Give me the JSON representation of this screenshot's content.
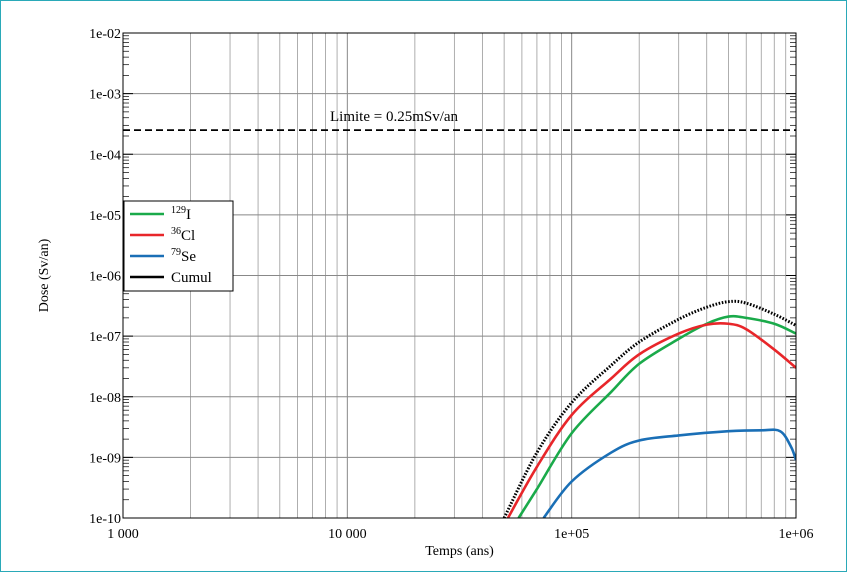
{
  "chart_data": {
    "type": "line",
    "title": "",
    "xlabel": "Temps (ans)",
    "ylabel": "Dose (Sv/an)",
    "x_scale": "log",
    "y_scale": "log",
    "xlim": [
      1000,
      1000000
    ],
    "ylim": [
      1e-10,
      0.01
    ],
    "x_ticks": [
      {
        "value": 1000,
        "label": "1 000"
      },
      {
        "value": 10000,
        "label": "10 000"
      },
      {
        "value": 100000,
        "label": "1e+05"
      },
      {
        "value": 1000000,
        "label": "1e+06"
      }
    ],
    "y_ticks": [
      {
        "value": 1e-10,
        "label": "1e-10"
      },
      {
        "value": 1e-09,
        "label": "1e-09"
      },
      {
        "value": 1e-08,
        "label": "1e-08"
      },
      {
        "value": 1e-07,
        "label": "1e-07"
      },
      {
        "value": 1e-06,
        "label": "1e-06"
      },
      {
        "value": 1e-05,
        "label": "1e-05"
      },
      {
        "value": 0.0001,
        "label": "1e-04"
      },
      {
        "value": 0.001,
        "label": "1e-03"
      },
      {
        "value": 0.01,
        "label": "1e-02"
      }
    ],
    "grid": true,
    "legend_position": "left",
    "limit_line": {
      "value": 0.00025,
      "label": "Limite = 0.25mSv/an",
      "color": "#000000"
    },
    "series": [
      {
        "name": "I",
        "mass": "129",
        "color": "#1aaa4a",
        "points": [
          [
            58000,
            1e-10
          ],
          [
            70000,
            3e-10
          ],
          [
            100000,
            2.5e-09
          ],
          [
            150000,
            1.2e-08
          ],
          [
            200000,
            3.5e-08
          ],
          [
            300000,
            9e-08
          ],
          [
            400000,
            1.6e-07
          ],
          [
            500000,
            2.1e-07
          ],
          [
            600000,
            2e-07
          ],
          [
            800000,
            1.6e-07
          ],
          [
            1000000,
            1.1e-07
          ]
        ]
      },
      {
        "name": "Cl",
        "mass": "36",
        "color": "#e8262a",
        "points": [
          [
            52000,
            1e-10
          ],
          [
            70000,
            7e-10
          ],
          [
            100000,
            5e-09
          ],
          [
            150000,
            2e-08
          ],
          [
            200000,
            5e-08
          ],
          [
            300000,
            1.1e-07
          ],
          [
            400000,
            1.55e-07
          ],
          [
            500000,
            1.6e-07
          ],
          [
            600000,
            1.3e-07
          ],
          [
            800000,
            6e-08
          ],
          [
            1000000,
            3e-08
          ]
        ]
      },
      {
        "name": "Se",
        "mass": "79",
        "color": "#1a6fb6",
        "points": [
          [
            75000,
            1e-10
          ],
          [
            100000,
            4e-10
          ],
          [
            150000,
            1.2e-09
          ],
          [
            200000,
            1.9e-09
          ],
          [
            300000,
            2.3e-09
          ],
          [
            500000,
            2.7e-09
          ],
          [
            700000,
            2.8e-09
          ],
          [
            850000,
            2.7e-09
          ],
          [
            950000,
            1.5e-09
          ],
          [
            1000000,
            9e-10
          ]
        ]
      },
      {
        "name": "Cumul",
        "mass": "",
        "color": "#000000",
        "dash": "dotted",
        "points": [
          [
            50000,
            1e-10
          ],
          [
            70000,
            1.2e-09
          ],
          [
            100000,
            8e-09
          ],
          [
            150000,
            3.3e-08
          ],
          [
            200000,
            8e-08
          ],
          [
            300000,
            1.9e-07
          ],
          [
            400000,
            3e-07
          ],
          [
            500000,
            3.7e-07
          ],
          [
            600000,
            3.5e-07
          ],
          [
            800000,
            2.3e-07
          ],
          [
            1000000,
            1.5e-07
          ]
        ]
      }
    ]
  }
}
